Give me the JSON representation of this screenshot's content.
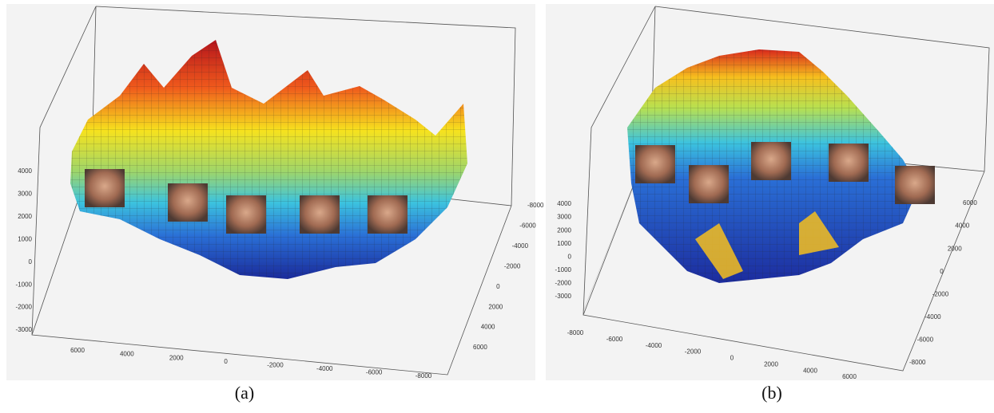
{
  "panels": [
    {
      "label": "(a)",
      "z_ticks": [
        "4000",
        "3000",
        "2000",
        "1000",
        "0",
        "-1000",
        "-2000",
        "-3000"
      ],
      "x_ticks": [
        "6000",
        "4000",
        "2000",
        "0",
        "-2000",
        "-4000",
        "-6000",
        "-8000"
      ],
      "y_ticks": [
        "-8000",
        "-6000",
        "-4000",
        "-2000",
        "0",
        "2000",
        "4000",
        "6000"
      ]
    },
    {
      "label": "(b)",
      "z_ticks": [
        "4000",
        "3000",
        "2000",
        "1000",
        "0",
        "-1000",
        "-2000",
        "-3000"
      ],
      "x_ticks": [
        "-8000",
        "-6000",
        "-4000",
        "-2000",
        "0",
        "2000",
        "4000",
        "6000"
      ],
      "y_ticks": [
        "6000",
        "4000",
        "2000",
        "0",
        "-2000",
        "-4000",
        "-6000",
        "-8000"
      ]
    }
  ]
}
